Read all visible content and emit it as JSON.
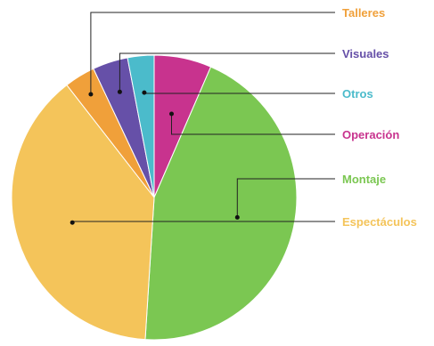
{
  "chart_data": {
    "type": "pie",
    "title": "",
    "unit": "%",
    "slices": [
      {
        "label": "Operación",
        "value": 6.5,
        "color": "#C8338E"
      },
      {
        "label": "Montaje",
        "value": 44.5,
        "color": "#7BC752"
      },
      {
        "label": "Espectáculos",
        "value": 38.5,
        "color": "#F4C45A"
      },
      {
        "label": "Talleres",
        "value": 3.5,
        "color": "#F0A03A"
      },
      {
        "label": "Visuales",
        "value": 4.0,
        "color": "#6650A8"
      },
      {
        "label": "Otros",
        "value": 3.0,
        "color": "#4BBBCB"
      }
    ],
    "legend": "right, with leader lines"
  }
}
